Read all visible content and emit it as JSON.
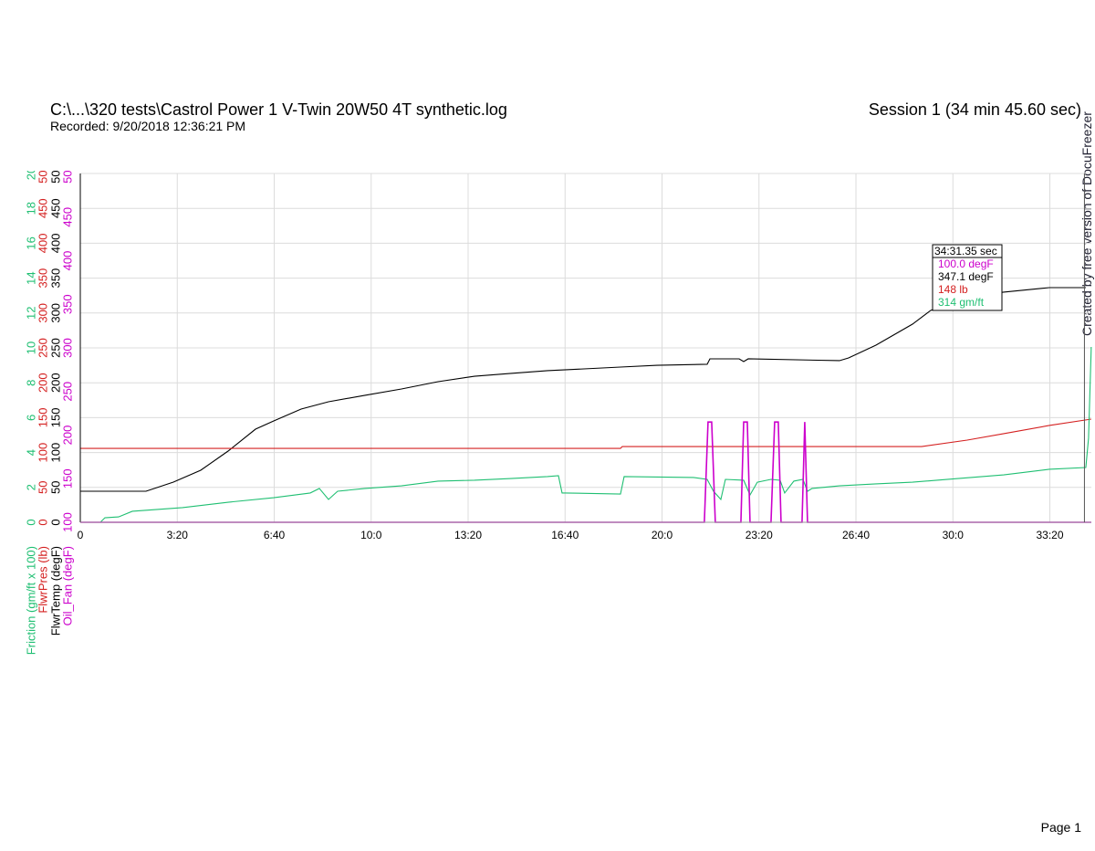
{
  "header": {
    "title": "C:\\...\\320 tests\\Castrol Power 1 V-Twin 20W50 4T synthetic.log",
    "subtitle": "Recorded: 9/20/2018 12:36:21 PM",
    "session": "Session 1 (34 min 45.60 sec)"
  },
  "watermark": "Created by free version of DocuFreezer",
  "footer": "Page 1",
  "chart_data": {
    "type": "line",
    "grid": true,
    "xlim": [
      0,
      2085.6
    ],
    "xticks": [
      0,
      {
        "value": 200,
        "label": "3:20"
      },
      {
        "value": 400,
        "label": "6:40"
      },
      {
        "value": 600,
        "label": "10:0"
      },
      {
        "value": 800,
        "label": "13:20"
      },
      {
        "value": 1000,
        "label": "16:40"
      },
      {
        "value": 1200,
        "label": "20:0"
      },
      {
        "value": 1400,
        "label": "23:20"
      },
      {
        "value": 1600,
        "label": "26:40"
      },
      {
        "value": 1800,
        "label": "30:0"
      },
      {
        "value": 2000,
        "label": "33:20"
      }
    ],
    "cursor": {
      "value": 2071.35,
      "label": "34:31.35 sec"
    },
    "series": [
      {
        "name": "Oil_Fan (degF)",
        "color": "#cc00cc",
        "ylim": [
          100,
          500
        ],
        "yticks": [
          100,
          150,
          200,
          250,
          300,
          350,
          400,
          450,
          500
        ],
        "readout": "100.0 degF",
        "x": [
          0,
          1287.3,
          1294.9,
          1302.4,
          1309.9,
          1362.7,
          1368.4,
          1375.9,
          1381.5,
          1424.8,
          1432.3,
          1439.8,
          1445.5,
          1488.8,
          1494.4,
          1500.1,
          2085.6
        ],
        "values": [
          100,
          100,
          215,
          215,
          100,
          100,
          215,
          215,
          100,
          100,
          215,
          215,
          100,
          100,
          215,
          100,
          100
        ]
      },
      {
        "name": "FlwrTemp (degF)",
        "color": "#000000",
        "ylim": [
          0,
          500
        ],
        "yticks": [
          0,
          50,
          100,
          150,
          200,
          250,
          300,
          350,
          400,
          450,
          500
        ],
        "readout": "347.1 degF",
        "x": [
          0,
          135.5,
          192.0,
          248.4,
          304.9,
          361.4,
          399.0,
          455.5,
          512.0,
          587.3,
          662.6,
          737.9,
          813.1,
          888.4,
          963.7,
          1039.0,
          1114.3,
          1189.6,
          1293.1,
          1298.8,
          1359.0,
          1368.4,
          1377.8,
          1566.0,
          1584.8,
          1641.3,
          1716.6,
          1754.2,
          1829.5,
          1904.8,
          1998.9,
          2074.2
        ],
        "values": [
          44.5,
          44.5,
          57.6,
          74.6,
          102.1,
          133.5,
          145.3,
          162.3,
          172.8,
          182.0,
          191.1,
          201.6,
          209.4,
          213.4,
          217.3,
          219.9,
          222.5,
          225.1,
          226.5,
          234.3,
          234.3,
          230.4,
          234.3,
          231.7,
          235.6,
          253.9,
          284.0,
          303.7,
          323.3,
          329.9,
          336.4,
          336.4
        ]
      },
      {
        "name": "FlwrPres (lb)",
        "color": "#d42020",
        "ylim": [
          0,
          500
        ],
        "yticks": [
          0,
          50,
          100,
          150,
          200,
          250,
          300,
          350,
          400,
          450,
          500
        ],
        "readout": "148 lb",
        "x": [
          0,
          1114.3,
          1118.0,
          1735.4,
          1829.5,
          1904.8,
          1998.9,
          2085.4
        ],
        "values": [
          106.0,
          106.0,
          108.6,
          108.6,
          117.8,
          127.0,
          138.8,
          147.9
        ]
      },
      {
        "name": "Friction (gm/ft x 100)",
        "color": "#1fbf72",
        "ylim": [
          0,
          20
        ],
        "yticks": [
          0,
          2,
          4,
          6,
          8,
          10,
          12,
          14,
          16,
          18,
          20
        ],
        "readout": "314 gm/ft",
        "x": [
          0,
          41.4,
          50.8,
          79.0,
          107.3,
          210.8,
          304.9,
          399.0,
          474.3,
          493.1,
          512.0,
          530.8,
          587.3,
          662.6,
          737.9,
          813.1,
          888.4,
          963.7,
          986.3,
          993.8,
          1001.3,
          1114.3,
          1121.8,
          1264.8,
          1293.1,
          1306.2,
          1321.3,
          1330.7,
          1368.4,
          1381.5,
          1396.6,
          1424.8,
          1443.6,
          1453.0,
          1471.9,
          1490.7,
          1500.1,
          1509.5,
          1566.0,
          1641.3,
          1716.6,
          1810.6,
          1904.8,
          1998.9,
          2074.2,
          2079.8,
          2085.4
        ],
        "values": [
          0,
          0,
          0.26,
          0.31,
          0.63,
          0.84,
          1.15,
          1.41,
          1.68,
          1.94,
          1.31,
          1.78,
          1.94,
          2.09,
          2.36,
          2.41,
          2.51,
          2.62,
          2.67,
          1.68,
          1.68,
          1.62,
          2.62,
          2.57,
          2.46,
          1.78,
          1.31,
          2.46,
          2.41,
          1.57,
          2.3,
          2.46,
          2.41,
          1.68,
          2.36,
          2.46,
          1.78,
          1.94,
          2.09,
          2.2,
          2.3,
          2.51,
          2.72,
          3.04,
          3.14,
          4.82,
          10.05
        ]
      }
    ]
  }
}
